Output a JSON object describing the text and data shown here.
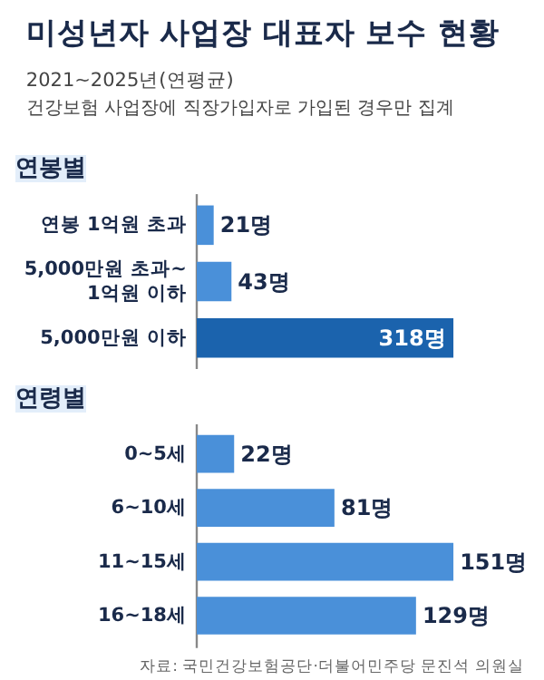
{
  "chart_data": [
    {
      "type": "other",
      "title": "미성년자 사업장 대표자 보수 현황",
      "subtitle": "2021~2025년(연평균)",
      "annotations": [
        "건강보험 사업장에 직장가입자로 가입된 경우만 집계"
      ]
    },
    {
      "type": "bar",
      "orientation": "horizontal",
      "title": "연봉별",
      "categories": [
        "연봉 1억원 초과",
        "5,000만원 초과~\n1억원 이하",
        "5,000만원 이하"
      ],
      "values": [
        21,
        43,
        318
      ],
      "colors": [
        "#4a90d9",
        "#4a90d9",
        "#1b63ad"
      ],
      "value_labels": [
        "21명",
        "43명",
        "318명"
      ]
    },
    {
      "type": "bar",
      "orientation": "horizontal",
      "title": "연령별",
      "categories": [
        "0~5세",
        "6~10세",
        "11~15세",
        "16~18세"
      ],
      "values": [
        22,
        81,
        151,
        129
      ],
      "color": "#4a90d9",
      "value_labels": [
        "22명",
        "81명",
        "151명",
        "129명"
      ],
      "annotations": [
        "자료: 국민건강보험공단·더불어민주당 문진석 의원실"
      ]
    }
  ]
}
